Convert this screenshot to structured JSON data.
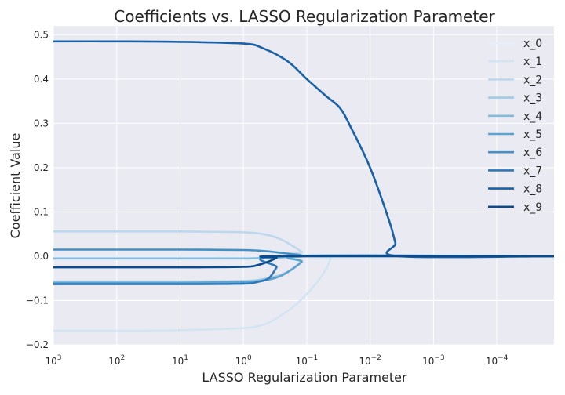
{
  "chart_data": {
    "type": "line",
    "title": "Coefficients vs. LASSO Regularization Parameter",
    "xlabel": "LASSO Regularization Parameter",
    "ylabel": "Coefficient Value",
    "xscale": "log",
    "x_inverted": true,
    "xlim": [
      1000,
      1.25e-05
    ],
    "ylim": [
      -0.2,
      0.52
    ],
    "yticks": [
      -0.2,
      -0.1,
      0.0,
      0.1,
      0.2,
      0.3,
      0.4,
      0.5
    ],
    "ytick_labels": [
      "−0.2",
      "−0.1",
      "0.0",
      "0.1",
      "0.2",
      "0.3",
      "0.4",
      "0.5"
    ],
    "xticks": [
      {
        "base": "10",
        "exp": "3",
        "value": 1000
      },
      {
        "base": "10",
        "exp": "2",
        "value": 100
      },
      {
        "base": "10",
        "exp": "1",
        "value": 10
      },
      {
        "base": "10",
        "exp": "0",
        "value": 1
      },
      {
        "base": "10",
        "exp": "−1",
        "value": 0.1
      },
      {
        "base": "10",
        "exp": "−2",
        "value": 0.01
      },
      {
        "base": "10",
        "exp": "−3",
        "value": 0.001
      },
      {
        "base": "10",
        "exp": "−4",
        "value": 0.0001
      }
    ],
    "grid": true,
    "legend_position": "top-right",
    "series": [
      {
        "name": "x_0",
        "color": "#e6eff9",
        "x": [
          1000,
          100,
          10,
          1,
          0.3,
          0.15,
          0.1,
          0.05,
          1.25e-05
        ],
        "y": [
          0,
          0,
          0,
          0,
          0,
          0,
          0,
          0,
          0
        ]
      },
      {
        "name": "x_1",
        "color": "#d3e4f3",
        "x": [
          1000,
          100,
          10,
          1,
          0.5,
          0.3,
          0.15,
          0.1,
          0.07,
          0.05,
          0.042,
          0.04,
          1.25e-05
        ],
        "y": [
          -0.168,
          -0.168,
          -0.167,
          -0.162,
          -0.155,
          -0.14,
          -0.11,
          -0.085,
          -0.06,
          -0.03,
          -0.005,
          0.0,
          0.0
        ]
      },
      {
        "name": "x_2",
        "color": "#bdd7ed",
        "x": [
          1000,
          100,
          10,
          1,
          0.5,
          0.3,
          0.2,
          0.12,
          0.1,
          1.25e-05
        ],
        "y": [
          0.056,
          0.056,
          0.056,
          0.054,
          0.05,
          0.042,
          0.03,
          0.01,
          0.0,
          0.0
        ]
      },
      {
        "name": "x_3",
        "color": "#a0cbe2",
        "x": [
          1000,
          100,
          10,
          1,
          0.5,
          0.3,
          0.2,
          0.12,
          0.1,
          1.25e-05
        ],
        "y": [
          -0.057,
          -0.057,
          -0.057,
          -0.056,
          -0.052,
          -0.045,
          -0.035,
          -0.012,
          0.0,
          0.0
        ]
      },
      {
        "name": "x_4",
        "color": "#82bbdb",
        "x": [
          1000,
          100,
          10,
          1,
          0.5,
          0.3,
          0.2,
          0.12,
          0.1,
          1.25e-05
        ],
        "y": [
          -0.005,
          -0.005,
          -0.005,
          -0.005,
          -0.004,
          -0.003,
          -0.002,
          -0.001,
          0.0,
          0.0
        ]
      },
      {
        "name": "x_5",
        "color": "#5fa2cf",
        "x": [
          1000,
          100,
          10,
          1,
          0.5,
          0.3,
          0.2,
          0.12,
          0.1,
          1.25e-05
        ],
        "y": [
          -0.06,
          -0.06,
          -0.06,
          -0.058,
          -0.055,
          -0.048,
          -0.036,
          -0.013,
          0.0,
          0.0
        ]
      },
      {
        "name": "x_6",
        "color": "#4490c4",
        "x": [
          1000,
          100,
          10,
          1,
          0.5,
          0.3,
          0.2,
          0.12,
          0.1,
          1.25e-05
        ],
        "y": [
          0.015,
          0.015,
          0.015,
          0.014,
          0.012,
          0.009,
          0.006,
          0.002,
          0.0,
          0.0
        ]
      },
      {
        "name": "x_7",
        "color": "#2f78b7",
        "x": [
          1000,
          100,
          10,
          1,
          0.6,
          0.4,
          0.3,
          0.25,
          1.25e-05
        ],
        "y": [
          -0.063,
          -0.063,
          -0.063,
          -0.062,
          -0.058,
          -0.05,
          -0.025,
          0.0,
          0.0
        ]
      },
      {
        "name": "x_8",
        "color": "#1a61a6",
        "x": [
          1000,
          100,
          10,
          1,
          0.5,
          0.2,
          0.1,
          0.05,
          0.03,
          0.02,
          0.01,
          0.005,
          0.004,
          0.0035,
          1.25e-05
        ],
        "y": [
          0.485,
          0.485,
          0.484,
          0.48,
          0.47,
          0.44,
          0.4,
          0.362,
          0.335,
          0.29,
          0.2,
          0.08,
          0.03,
          0.0,
          0.0
        ]
      },
      {
        "name": "x_9",
        "color": "#0b4a8b",
        "x": [
          1000,
          100,
          10,
          1,
          0.6,
          0.4,
          0.3,
          0.25,
          1.25e-05
        ],
        "y": [
          -0.025,
          -0.025,
          -0.025,
          -0.024,
          -0.02,
          -0.012,
          -0.004,
          0.0,
          0.0
        ]
      }
    ]
  }
}
